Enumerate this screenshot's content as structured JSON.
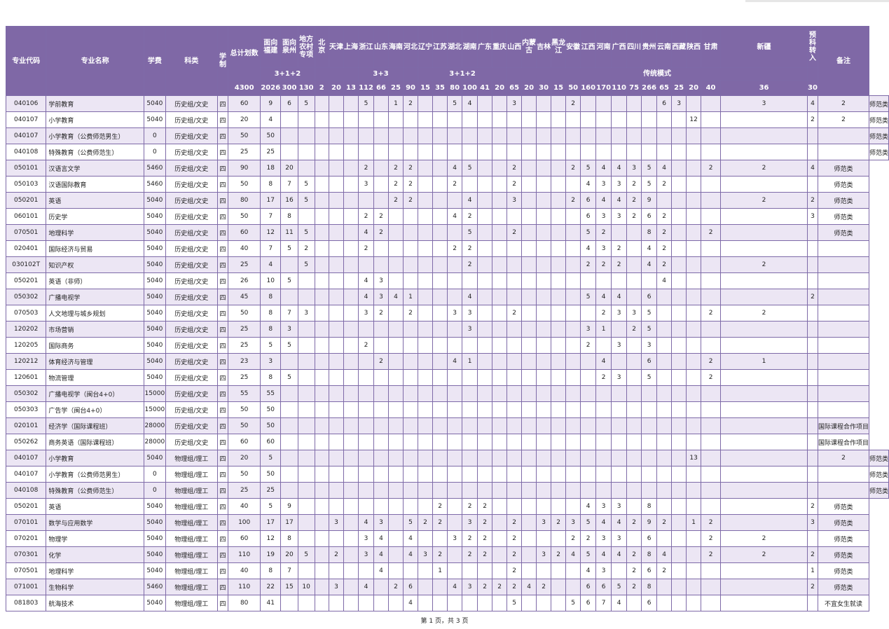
{
  "headers": {
    "code": "专业代码",
    "name": "专业名称",
    "fee": "学费",
    "subject": "科类",
    "duration": "学制",
    "total_plan": "总计划数",
    "provinces": [
      "面向福建",
      "面向泉州",
      "地方农村专项",
      "北京",
      "天津",
      "上海",
      "浙江",
      "山东",
      "海南",
      "河北",
      "辽宁",
      "江苏",
      "湖北",
      "湖南",
      "广东",
      "重庆",
      "山西",
      "内蒙古",
      "吉林",
      "黑龙江",
      "安徽",
      "江西",
      "河南",
      "广西",
      "四川",
      "贵州",
      "云南",
      "西藏",
      "陕西",
      "甘肃",
      "新疆",
      "预科转入"
    ],
    "note": "备注",
    "groups": [
      {
        "label": "3+1+2",
        "span": 3
      },
      {
        "label": "",
        "span": 3
      },
      {
        "label": "3+3",
        "span": 3
      },
      {
        "label": "",
        "span": 1
      },
      {
        "label": "3+1+2",
        "span": 6
      },
      {
        "label": "传统模式",
        "span": 15
      },
      {
        "label": "",
        "span": 1
      }
    ],
    "plan_totals": [
      "4300",
      "2026",
      "300",
      "130",
      "2",
      "20",
      "13",
      "112",
      "66",
      "25",
      "90",
      "15",
      "35",
      "80",
      "100",
      "41",
      "20",
      "65",
      "20",
      "30",
      "15",
      "50",
      "160",
      "170",
      "110",
      "75",
      "266",
      "65",
      "25",
      "20",
      "40",
      "36",
      "30"
    ]
  },
  "rows": [
    [
      "040106",
      "学前教育",
      "5040",
      "历史组/文史",
      "四",
      "60",
      "9",
      "6",
      "5",
      "",
      "",
      "",
      "5",
      "",
      "1",
      "2",
      "",
      "",
      "5",
      "4",
      "",
      "",
      "3",
      "",
      "",
      "",
      "2",
      "",
      "",
      "",
      "",
      "",
      "6",
      "3",
      "",
      "",
      "3",
      "4",
      "2",
      "师范类"
    ],
    [
      "040107",
      "小学教育",
      "5040",
      "历史组/文史",
      "四",
      "20",
      "4",
      "",
      "",
      "",
      "",
      "",
      "",
      "",
      "",
      "",
      "",
      "",
      "",
      "",
      "",
      "",
      "",
      "",
      "",
      "",
      "",
      "",
      "",
      "",
      "",
      "",
      "",
      "",
      "12",
      "",
      "",
      "2",
      "2",
      "师范类"
    ],
    [
      "040107",
      "小学教育（公费师范男生）",
      "0",
      "历史组/文史",
      "四",
      "50",
      "50",
      "",
      "",
      "",
      "",
      "",
      "",
      "",
      "",
      "",
      "",
      "",
      "",
      "",
      "",
      "",
      "",
      "",
      "",
      "",
      "",
      "",
      "",
      "",
      "",
      "",
      "",
      "",
      "",
      "",
      "",
      "",
      "",
      "师范类"
    ],
    [
      "040108",
      "特殊教育（公费师范生）",
      "0",
      "历史组/文史",
      "四",
      "25",
      "25",
      "",
      "",
      "",
      "",
      "",
      "",
      "",
      "",
      "",
      "",
      "",
      "",
      "",
      "",
      "",
      "",
      "",
      "",
      "",
      "",
      "",
      "",
      "",
      "",
      "",
      "",
      "",
      "",
      "",
      "",
      "",
      "",
      "师范类"
    ],
    [
      "050101",
      "汉语言文学",
      "5460",
      "历史组/文史",
      "四",
      "90",
      "18",
      "20",
      "",
      "",
      "",
      "",
      "2",
      "",
      "2",
      "2",
      "",
      "",
      "4",
      "5",
      "",
      "",
      "2",
      "",
      "",
      "",
      "2",
      "5",
      "4",
      "4",
      "3",
      "5",
      "4",
      "",
      "",
      "2",
      "2",
      "4",
      "师范类"
    ],
    [
      "050103",
      "汉语国际教育",
      "5460",
      "历史组/文史",
      "四",
      "50",
      "8",
      "7",
      "5",
      "",
      "",
      "",
      "3",
      "",
      "2",
      "2",
      "",
      "",
      "2",
      "",
      "",
      "",
      "2",
      "",
      "",
      "",
      "",
      "4",
      "3",
      "3",
      "2",
      "5",
      "2",
      "",
      "",
      "",
      "",
      "",
      "师范类"
    ],
    [
      "050201",
      "英语",
      "5040",
      "历史组/文史",
      "四",
      "80",
      "17",
      "16",
      "5",
      "",
      "",
      "",
      "",
      "",
      "2",
      "2",
      "",
      "",
      "",
      "4",
      "",
      "",
      "3",
      "",
      "",
      "",
      "2",
      "6",
      "4",
      "4",
      "2",
      "9",
      "",
      "",
      "",
      "",
      "2",
      "2",
      "师范类"
    ],
    [
      "060101",
      "历史学",
      "5040",
      "历史组/文史",
      "四",
      "50",
      "7",
      "8",
      "",
      "",
      "",
      "",
      "2",
      "2",
      "",
      "",
      "",
      "",
      "4",
      "2",
      "",
      "",
      "",
      "",
      "",
      "",
      "",
      "6",
      "3",
      "3",
      "2",
      "6",
      "2",
      "",
      "",
      "",
      "",
      "3",
      "师范类"
    ],
    [
      "070501",
      "地理科学",
      "5040",
      "历史组/文史",
      "四",
      "60",
      "12",
      "11",
      "5",
      "",
      "",
      "",
      "4",
      "2",
      "",
      "",
      "",
      "",
      "",
      "5",
      "",
      "",
      "2",
      "",
      "",
      "",
      "",
      "5",
      "2",
      "",
      "",
      "8",
      "2",
      "",
      "",
      "2",
      "",
      "",
      "师范类"
    ],
    [
      "020401",
      "国际经济与贸易",
      "5040",
      "历史组/文史",
      "四",
      "40",
      "7",
      "5",
      "2",
      "",
      "",
      "",
      "2",
      "",
      "",
      "",
      "",
      "",
      "2",
      "2",
      "",
      "",
      "",
      "",
      "",
      "",
      "",
      "4",
      "3",
      "2",
      "",
      "4",
      "2",
      "",
      "",
      "",
      "",
      "",
      ""
    ],
    [
      "030102T",
      "知识产权",
      "5040",
      "历史组/文史",
      "四",
      "25",
      "4",
      "",
      "5",
      "",
      "",
      "",
      "",
      "",
      "",
      "",
      "",
      "",
      "",
      "2",
      "",
      "",
      "",
      "",
      "",
      "",
      "",
      "2",
      "2",
      "2",
      "",
      "4",
      "2",
      "",
      "",
      "",
      "2",
      "",
      ""
    ],
    [
      "050201",
      "英语（非师）",
      "5040",
      "历史组/文史",
      "四",
      "26",
      "10",
      "5",
      "",
      "",
      "",
      "",
      "4",
      "3",
      "",
      "",
      "",
      "",
      "",
      "",
      "",
      "",
      "",
      "",
      "",
      "",
      "",
      "",
      "",
      "",
      "",
      "",
      "4",
      "",
      "",
      "",
      "",
      "",
      ""
    ],
    [
      "050302",
      "广播电视学",
      "5040",
      "历史组/文史",
      "四",
      "45",
      "8",
      "",
      "",
      "",
      "",
      "",
      "4",
      "3",
      "4",
      "1",
      "",
      "",
      "",
      "4",
      "",
      "",
      "",
      "",
      "",
      "",
      "",
      "5",
      "4",
      "4",
      "",
      "6",
      "",
      "",
      "",
      "",
      "",
      "2",
      ""
    ],
    [
      "070503",
      "人文地理与城乡规划",
      "5040",
      "历史组/文史",
      "四",
      "50",
      "8",
      "7",
      "3",
      "",
      "",
      "",
      "3",
      "2",
      "",
      "2",
      "",
      "",
      "3",
      "3",
      "",
      "",
      "2",
      "",
      "",
      "",
      "",
      "",
      "2",
      "3",
      "3",
      "5",
      "",
      "",
      "",
      "2",
      "2",
      "",
      ""
    ],
    [
      "120202",
      "市场营销",
      "5040",
      "历史组/文史",
      "四",
      "25",
      "8",
      "3",
      "",
      "",
      "",
      "",
      "",
      "",
      "",
      "",
      "",
      "",
      "",
      "3",
      "",
      "",
      "",
      "",
      "",
      "",
      "",
      "3",
      "1",
      "",
      "2",
      "5",
      "",
      "",
      "",
      "",
      "",
      "",
      ""
    ],
    [
      "120205",
      "国际商务",
      "5040",
      "历史组/文史",
      "四",
      "25",
      "5",
      "5",
      "",
      "",
      "",
      "",
      "2",
      "",
      "",
      "",
      "",
      "",
      "",
      "",
      "",
      "",
      "",
      "",
      "",
      "",
      "",
      "2",
      "",
      "3",
      "",
      "3",
      "",
      "",
      "",
      "",
      "",
      "",
      ""
    ],
    [
      "120212",
      "体育经济与管理",
      "5040",
      "历史组/文史",
      "四",
      "23",
      "3",
      "",
      "",
      "",
      "",
      "",
      "",
      "2",
      "",
      "",
      "",
      "",
      "4",
      "1",
      "",
      "",
      "",
      "",
      "",
      "",
      "",
      "",
      "4",
      "",
      "",
      "6",
      "",
      "",
      "",
      "2",
      "1",
      "",
      ""
    ],
    [
      "120601",
      "物流管理",
      "5040",
      "历史组/文史",
      "四",
      "25",
      "8",
      "5",
      "",
      "",
      "",
      "",
      "",
      "",
      "",
      "",
      "",
      "",
      "",
      "",
      "",
      "",
      "",
      "",
      "",
      "",
      "",
      "",
      "2",
      "3",
      "",
      "5",
      "",
      "",
      "",
      "2",
      "",
      "",
      ""
    ],
    [
      "050302",
      "广播电视学（闽台4+0）",
      "15000",
      "历史组/文史",
      "四",
      "55",
      "55",
      "",
      "",
      "",
      "",
      "",
      "",
      "",
      "",
      "",
      "",
      "",
      "",
      "",
      "",
      "",
      "",
      "",
      "",
      "",
      "",
      "",
      "",
      "",
      "",
      "",
      "",
      "",
      "",
      "",
      "",
      "",
      ""
    ],
    [
      "050303",
      "广告学（闽台4+0）",
      "15000",
      "历史组/文史",
      "四",
      "50",
      "50",
      "",
      "",
      "",
      "",
      "",
      "",
      "",
      "",
      "",
      "",
      "",
      "",
      "",
      "",
      "",
      "",
      "",
      "",
      "",
      "",
      "",
      "",
      "",
      "",
      "",
      "",
      "",
      "",
      "",
      "",
      "",
      ""
    ],
    [
      "020101",
      "经济学（国际课程班）",
      "28000",
      "历史组/文史",
      "四",
      "50",
      "50",
      "",
      "",
      "",
      "",
      "",
      "",
      "",
      "",
      "",
      "",
      "",
      "",
      "",
      "",
      "",
      "",
      "",
      "",
      "",
      "",
      "",
      "",
      "",
      "",
      "",
      "",
      "",
      "",
      "",
      "",
      "",
      "国际课程合作项目"
    ],
    [
      "050262",
      "商务英语（国际课程班）",
      "28000",
      "历史组/文史",
      "四",
      "60",
      "60",
      "",
      "",
      "",
      "",
      "",
      "",
      "",
      "",
      "",
      "",
      "",
      "",
      "",
      "",
      "",
      "",
      "",
      "",
      "",
      "",
      "",
      "",
      "",
      "",
      "",
      "",
      "",
      "",
      "",
      "",
      "",
      "国际课程合作项目"
    ],
    [
      "040107",
      "小学教育",
      "5040",
      "物理组/理工",
      "四",
      "20",
      "5",
      "",
      "",
      "",
      "",
      "",
      "",
      "",
      "",
      "",
      "",
      "",
      "",
      "",
      "",
      "",
      "",
      "",
      "",
      "",
      "",
      "",
      "",
      "",
      "",
      "",
      "",
      "",
      "13",
      "",
      "",
      "",
      "2",
      "师范类"
    ],
    [
      "040107",
      "小学教育（公费师范男生）",
      "0",
      "物理组/理工",
      "四",
      "50",
      "50",
      "",
      "",
      "",
      "",
      "",
      "",
      "",
      "",
      "",
      "",
      "",
      "",
      "",
      "",
      "",
      "",
      "",
      "",
      "",
      "",
      "",
      "",
      "",
      "",
      "",
      "",
      "",
      "",
      "",
      "",
      "",
      "",
      "师范类"
    ],
    [
      "040108",
      "特殊教育（公费师范生）",
      "0",
      "物理组/理工",
      "四",
      "25",
      "25",
      "",
      "",
      "",
      "",
      "",
      "",
      "",
      "",
      "",
      "",
      "",
      "",
      "",
      "",
      "",
      "",
      "",
      "",
      "",
      "",
      "",
      "",
      "",
      "",
      "",
      "",
      "",
      "",
      "",
      "",
      "",
      "",
      "师范类"
    ],
    [
      "050201",
      "英语",
      "5040",
      "物理组/理工",
      "四",
      "40",
      "5",
      "9",
      "",
      "",
      "",
      "",
      "",
      "",
      "",
      "",
      "",
      "2",
      "",
      "2",
      "2",
      "",
      "",
      "",
      "",
      "",
      "",
      "4",
      "3",
      "3",
      "",
      "8",
      "",
      "",
      "",
      "",
      "",
      "2",
      "师范类"
    ],
    [
      "070101",
      "数学与应用数学",
      "5040",
      "物理组/理工",
      "四",
      "100",
      "17",
      "17",
      "",
      "",
      "3",
      "",
      "4",
      "3",
      "",
      "5",
      "2",
      "2",
      "",
      "3",
      "2",
      "",
      "2",
      "",
      "3",
      "2",
      "3",
      "5",
      "4",
      "4",
      "2",
      "9",
      "2",
      "",
      "1",
      "2",
      "",
      "3",
      "师范类"
    ],
    [
      "070201",
      "物理学",
      "5040",
      "物理组/理工",
      "四",
      "60",
      "12",
      "8",
      "",
      "",
      "",
      "",
      "3",
      "4",
      "",
      "4",
      "",
      "",
      "3",
      "2",
      "2",
      "",
      "2",
      "",
      "",
      "",
      "2",
      "2",
      "3",
      "3",
      "",
      "6",
      "",
      "",
      "",
      "2",
      "2",
      "",
      "师范类"
    ],
    [
      "070301",
      "化学",
      "5040",
      "物理组/理工",
      "四",
      "110",
      "19",
      "20",
      "5",
      "",
      "2",
      "",
      "3",
      "4",
      "",
      "4",
      "3",
      "2",
      "",
      "2",
      "2",
      "",
      "2",
      "",
      "3",
      "2",
      "4",
      "5",
      "4",
      "4",
      "2",
      "8",
      "4",
      "",
      "",
      "2",
      "2",
      "2",
      "师范类"
    ],
    [
      "070501",
      "地理科学",
      "5040",
      "物理组/理工",
      "四",
      "40",
      "8",
      "7",
      "",
      "",
      "",
      "",
      "",
      "4",
      "",
      "",
      "",
      "1",
      "",
      "",
      "",
      "",
      "2",
      "",
      "",
      "",
      "",
      "4",
      "3",
      "",
      "2",
      "6",
      "2",
      "",
      "",
      "",
      "",
      "1",
      "师范类"
    ],
    [
      "071001",
      "生物科学",
      "5460",
      "物理组/理工",
      "四",
      "110",
      "22",
      "15",
      "10",
      "",
      "3",
      "",
      "4",
      "",
      "2",
      "6",
      "",
      "",
      "4",
      "3",
      "2",
      "2",
      "2",
      "4",
      "2",
      "",
      "",
      "6",
      "6",
      "5",
      "2",
      "8",
      "",
      "",
      "",
      "",
      "",
      "2",
      "师范类"
    ],
    [
      "081803",
      "航海技术",
      "5040",
      "物理组/理工",
      "四",
      "80",
      "41",
      "",
      "",
      "",
      "",
      "",
      "",
      "",
      "",
      "4",
      "",
      "",
      "",
      "",
      "",
      "",
      "5",
      "",
      "",
      "",
      "5",
      "6",
      "7",
      "4",
      "",
      "6",
      "",
      "",
      "",
      "",
      "",
      "",
      "不宜女生就读"
    ]
  ],
  "footer": "第 1 页，共 3 页"
}
